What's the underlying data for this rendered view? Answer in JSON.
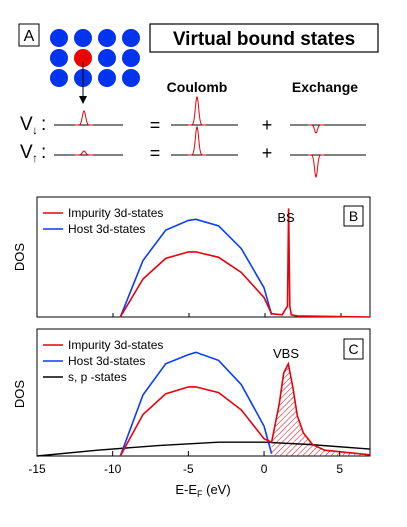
{
  "panel_a": {
    "letter": "A",
    "title": "Virtual bound states",
    "headings": {
      "coulomb": "Coulomb",
      "exchange": "Exchange"
    },
    "rows": [
      {
        "label_v": "V",
        "label_arrow": "↓",
        "label_colon": ":",
        "equals": "=",
        "plus": "+"
      },
      {
        "label_v": "V",
        "label_arrow": "↑",
        "label_colon": ":",
        "equals": "=",
        "plus": "+"
      }
    ],
    "lattice": {
      "rows": 3,
      "cols": 4,
      "impurity_row": 1,
      "impurity_col": 1,
      "host_color": "#0033ee",
      "impurity_color": "#ee0000"
    }
  },
  "chart_data": [
    {
      "type": "line",
      "panel": "B",
      "xlabel": "",
      "ylabel": "DOS",
      "xlim": [
        -15,
        7
      ],
      "ylim": [
        0,
        1.05
      ],
      "series": [
        {
          "name": "Impurity 3d-states",
          "color": "#e8000b",
          "x": [
            -9.5,
            -8,
            -6.5,
            -5,
            -4.5,
            -3,
            -1.5,
            0,
            0.5,
            1.2,
            1.55,
            1.62,
            1.7,
            1.8,
            2.2,
            7
          ],
          "y": [
            0,
            0.35,
            0.54,
            0.6,
            0.6,
            0.55,
            0.41,
            0.18,
            0.03,
            0.02,
            0.1,
            1.0,
            0.1,
            0.02,
            0.01,
            0.0
          ]
        },
        {
          "name": "Host 3d-states",
          "color": "#0a3cff",
          "x": [
            -9.5,
            -8,
            -6.5,
            -5,
            -4.5,
            -3,
            -1.5,
            0,
            0.5
          ],
          "y": [
            0,
            0.52,
            0.8,
            0.89,
            0.9,
            0.84,
            0.63,
            0.27,
            0.02
          ]
        }
      ],
      "annotations": [
        {
          "text": "BS"
        }
      ],
      "legend": "top-left",
      "grid": false
    },
    {
      "type": "area",
      "panel": "C",
      "xlabel": "E-E_F (eV)",
      "ylabel": "DOS",
      "xlim": [
        -15,
        7
      ],
      "ylim": [
        0,
        1.05
      ],
      "xticks": [
        -15,
        -10,
        -5,
        0,
        5
      ],
      "series": [
        {
          "name": "Impurity 3d-states",
          "color": "#e8000b",
          "x": [
            -9.5,
            -8,
            -6.5,
            -5,
            -4.5,
            -3,
            -1.5,
            0,
            0.5,
            1.0,
            1.3,
            1.6,
            1.9,
            2.2,
            2.6,
            3.2,
            4.0,
            7
          ],
          "y": [
            0,
            0.36,
            0.54,
            0.6,
            0.6,
            0.55,
            0.4,
            0.15,
            0.12,
            0.45,
            0.72,
            0.8,
            0.6,
            0.35,
            0.2,
            0.1,
            0.05,
            0.01
          ]
        },
        {
          "name": "Host 3d-states",
          "color": "#0a3cff",
          "x": [
            -9.5,
            -8,
            -6.5,
            -5,
            -4.5,
            -3,
            -1.5,
            0,
            0.5
          ],
          "y": [
            0,
            0.53,
            0.8,
            0.88,
            0.9,
            0.83,
            0.62,
            0.26,
            0.02
          ]
        },
        {
          "name": "s, p -states",
          "color": "#000000",
          "x": [
            -15,
            -11,
            -7,
            -3,
            0,
            3,
            7
          ],
          "y": [
            0.0,
            0.05,
            0.09,
            0.12,
            0.12,
            0.1,
            0.06
          ]
        }
      ],
      "annotations": [
        {
          "text": "VBS"
        }
      ],
      "legend": "top-left",
      "grid": false
    }
  ],
  "panel_labels": {
    "b": "B",
    "c": "C"
  },
  "axis": {
    "xlabel_main": "E-E",
    "xlabel_sub": "F",
    "xlabel_unit": " (eV)"
  }
}
